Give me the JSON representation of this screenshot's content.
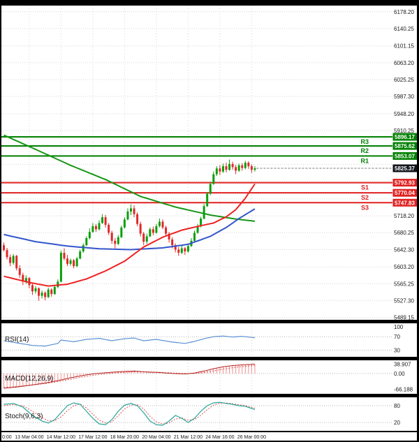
{
  "chart_data": {
    "type": "candlestick",
    "title": "",
    "grid": true,
    "ylim": [
      5480,
      6192
    ],
    "price_axis_ticks": [
      6178.2,
      6140.25,
      6101.15,
      6063.2,
      6025.25,
      5987.3,
      5948.2,
      5910.25,
      5872.3,
      5834.2,
      5796.25,
      5756.3,
      5718.2,
      5680.25,
      5642.3,
      5603.2,
      5565.25,
      5527.3,
      5489.15
    ],
    "time_axis": [
      {
        "text": "0:00",
        "i": -1
      },
      {
        "text": "13 Mar 04:00",
        "i": 8
      },
      {
        "text": "14 Mar 12:00",
        "i": 18
      },
      {
        "text": "17 Mar 12:00",
        "i": 28
      },
      {
        "text": "18 Mar 20:00",
        "i": 38
      },
      {
        "text": "20 Mar 04:00",
        "i": 48
      },
      {
        "text": "21 Mar 12:00",
        "i": 58
      },
      {
        "text": "24 Mar 16:00",
        "i": 68
      },
      {
        "text": "26 Mar 00:00",
        "i": 78
      }
    ],
    "levels": [
      {
        "label": "R3",
        "value": 5896.17,
        "text": "5896.17",
        "kind": "resistance"
      },
      {
        "label": "R2",
        "value": 5875.62,
        "text": "5875.62",
        "kind": "resistance"
      },
      {
        "label": "R1",
        "value": 5853.07,
        "text": "5853.07",
        "kind": "resistance"
      },
      {
        "label": "S1",
        "value": 5792.93,
        "text": "5792.93",
        "kind": "support"
      },
      {
        "label": "S2",
        "value": 5770.04,
        "text": "5770.04",
        "kind": "support"
      },
      {
        "label": "S3",
        "value": 5747.83,
        "text": "5747.83",
        "kind": "support"
      }
    ],
    "current_price": {
      "value": 5825.37,
      "text": "5825.37"
    },
    "series": {
      "candles": [
        [
          5652,
          5658,
          5638,
          5641
        ],
        [
          5641,
          5646,
          5620,
          5625
        ],
        [
          5625,
          5631,
          5605,
          5612
        ],
        [
          5612,
          5632,
          5608,
          5628
        ],
        [
          5628,
          5630,
          5595,
          5600
        ],
        [
          5600,
          5607,
          5578,
          5585
        ],
        [
          5585,
          5590,
          5562,
          5570
        ],
        [
          5570,
          5584,
          5565,
          5578
        ],
        [
          5578,
          5580,
          5555,
          5562
        ],
        [
          5562,
          5565,
          5540,
          5548
        ],
        [
          5548,
          5560,
          5543,
          5555
        ],
        [
          5555,
          5557,
          5527,
          5538
        ],
        [
          5538,
          5550,
          5532,
          5545
        ],
        [
          5545,
          5548,
          5528,
          5535
        ],
        [
          5535,
          5556,
          5533,
          5552
        ],
        [
          5552,
          5555,
          5536,
          5542
        ],
        [
          5542,
          5562,
          5540,
          5558
        ],
        [
          5558,
          5575,
          5555,
          5570
        ],
        [
          5570,
          5640,
          5568,
          5635
        ],
        [
          5635,
          5645,
          5618,
          5622
        ],
        [
          5622,
          5630,
          5605,
          5610
        ],
        [
          5610,
          5622,
          5606,
          5618
        ],
        [
          5618,
          5621,
          5600,
          5605
        ],
        [
          5605,
          5626,
          5602,
          5622
        ],
        [
          5622,
          5642,
          5620,
          5638
        ],
        [
          5638,
          5656,
          5635,
          5652
        ],
        [
          5652,
          5672,
          5650,
          5668
        ],
        [
          5668,
          5690,
          5665,
          5682
        ],
        [
          5682,
          5702,
          5680,
          5695
        ],
        [
          5695,
          5700,
          5682,
          5688
        ],
        [
          5688,
          5708,
          5685,
          5702
        ],
        [
          5702,
          5722,
          5700,
          5715
        ],
        [
          5715,
          5720,
          5692,
          5698
        ],
        [
          5698,
          5702,
          5675,
          5680
        ],
        [
          5680,
          5685,
          5655,
          5662
        ],
        [
          5662,
          5668,
          5645,
          5655
        ],
        [
          5655,
          5675,
          5652,
          5670
        ],
        [
          5670,
          5696,
          5668,
          5692
        ],
        [
          5692,
          5715,
          5690,
          5710
        ],
        [
          5710,
          5735,
          5708,
          5728
        ],
        [
          5728,
          5744,
          5720,
          5735
        ],
        [
          5735,
          5742,
          5715,
          5722
        ],
        [
          5722,
          5726,
          5695,
          5700
        ],
        [
          5700,
          5705,
          5672,
          5678
        ],
        [
          5678,
          5682,
          5652,
          5660
        ],
        [
          5660,
          5678,
          5655,
          5672
        ],
        [
          5672,
          5692,
          5670,
          5688
        ],
        [
          5688,
          5694,
          5674,
          5680
        ],
        [
          5680,
          5700,
          5678,
          5695
        ],
        [
          5695,
          5712,
          5692,
          5705
        ],
        [
          5705,
          5710,
          5688,
          5692
        ],
        [
          5692,
          5696,
          5672,
          5678
        ],
        [
          5678,
          5682,
          5658,
          5665
        ],
        [
          5665,
          5670,
          5645,
          5652
        ],
        [
          5652,
          5656,
          5636,
          5642
        ],
        [
          5642,
          5648,
          5628,
          5635
        ],
        [
          5635,
          5652,
          5632,
          5645
        ],
        [
          5645,
          5648,
          5630,
          5638
        ],
        [
          5638,
          5655,
          5635,
          5650
        ],
        [
          5650,
          5668,
          5648,
          5662
        ],
        [
          5662,
          5685,
          5660,
          5680
        ],
        [
          5680,
          5700,
          5678,
          5695
        ],
        [
          5695,
          5716,
          5692,
          5712
        ],
        [
          5712,
          5745,
          5710,
          5740
        ],
        [
          5740,
          5772,
          5738,
          5768
        ],
        [
          5768,
          5795,
          5765,
          5790
        ],
        [
          5790,
          5818,
          5788,
          5812
        ],
        [
          5812,
          5830,
          5808,
          5825
        ],
        [
          5825,
          5832,
          5810,
          5818
        ],
        [
          5818,
          5836,
          5815,
          5830
        ],
        [
          5830,
          5838,
          5816,
          5822
        ],
        [
          5822,
          5845,
          5820,
          5835
        ],
        [
          5835,
          5840,
          5822,
          5828
        ],
        [
          5828,
          5833,
          5812,
          5820
        ],
        [
          5820,
          5836,
          5817,
          5832
        ],
        [
          5832,
          5837,
          5820,
          5826
        ],
        [
          5826,
          5842,
          5823,
          5838
        ],
        [
          5838,
          5841,
          5824,
          5830
        ],
        [
          5830,
          5834,
          5815,
          5822
        ],
        [
          5822,
          5830,
          5818,
          5825.37
        ]
      ],
      "ma_keypoints": {
        "green": [
          [
            0,
            5900
          ],
          [
            10,
            5868
          ],
          [
            21,
            5832
          ],
          [
            32,
            5800
          ],
          [
            43,
            5762
          ],
          [
            54,
            5738
          ],
          [
            65,
            5720
          ],
          [
            72,
            5712
          ],
          [
            79,
            5706
          ]
        ],
        "blue": [
          [
            0,
            5676
          ],
          [
            10,
            5660
          ],
          [
            20,
            5650
          ],
          [
            30,
            5644
          ],
          [
            40,
            5642
          ],
          [
            50,
            5646
          ],
          [
            58,
            5654
          ],
          [
            65,
            5672
          ],
          [
            70,
            5692
          ],
          [
            74,
            5712
          ],
          [
            79,
            5734
          ]
        ],
        "red": [
          [
            0,
            5582
          ],
          [
            8,
            5568
          ],
          [
            14,
            5560
          ],
          [
            20,
            5564
          ],
          [
            26,
            5576
          ],
          [
            32,
            5594
          ],
          [
            38,
            5616
          ],
          [
            44,
            5648
          ],
          [
            50,
            5670
          ],
          [
            56,
            5686
          ],
          [
            62,
            5696
          ],
          [
            66,
            5702
          ],
          [
            70,
            5716
          ],
          [
            73,
            5732
          ],
          [
            76,
            5758
          ],
          [
            79,
            5790
          ]
        ]
      },
      "rsi_keypoints": [
        [
          0,
          58
        ],
        [
          5,
          50
        ],
        [
          9,
          44
        ],
        [
          13,
          42
        ],
        [
          17,
          50
        ],
        [
          18,
          60
        ],
        [
          22,
          55
        ],
        [
          26,
          62
        ],
        [
          30,
          65
        ],
        [
          34,
          58
        ],
        [
          38,
          64
        ],
        [
          41,
          66
        ],
        [
          44,
          58
        ],
        [
          48,
          62
        ],
        [
          53,
          54
        ],
        [
          57,
          50
        ],
        [
          60,
          56
        ],
        [
          63,
          64
        ],
        [
          66,
          70
        ],
        [
          69,
          72
        ],
        [
          72,
          69
        ],
        [
          75,
          71
        ],
        [
          79,
          67
        ]
      ],
      "macd_keypoints": [
        [
          0,
          -62
        ],
        [
          5,
          -55
        ],
        [
          9,
          -48
        ],
        [
          13,
          -40
        ],
        [
          17,
          -30
        ],
        [
          21,
          -18
        ],
        [
          25,
          -8
        ],
        [
          29,
          0
        ],
        [
          33,
          4
        ],
        [
          37,
          8
        ],
        [
          41,
          10
        ],
        [
          45,
          6
        ],
        [
          49,
          4
        ],
        [
          53,
          0
        ],
        [
          57,
          -2
        ],
        [
          60,
          2
        ],
        [
          63,
          10
        ],
        [
          66,
          20
        ],
        [
          69,
          28
        ],
        [
          72,
          33
        ],
        [
          75,
          36
        ],
        [
          79,
          38.9
        ]
      ],
      "macd_signal_keypoints": [
        [
          0,
          -58
        ],
        [
          5,
          -53
        ],
        [
          9,
          -48
        ],
        [
          13,
          -42
        ],
        [
          17,
          -34
        ],
        [
          21,
          -24
        ],
        [
          25,
          -14
        ],
        [
          29,
          -6
        ],
        [
          33,
          0
        ],
        [
          37,
          4
        ],
        [
          41,
          7
        ],
        [
          45,
          7
        ],
        [
          49,
          5
        ],
        [
          53,
          2
        ],
        [
          57,
          0
        ],
        [
          60,
          0
        ],
        [
          63,
          4
        ],
        [
          66,
          11
        ],
        [
          69,
          18
        ],
        [
          72,
          24
        ],
        [
          75,
          29
        ],
        [
          79,
          34
        ]
      ],
      "stoch_k_keypoints": [
        [
          0,
          85
        ],
        [
          3,
          88
        ],
        [
          6,
          75
        ],
        [
          9,
          45
        ],
        [
          12,
          25
        ],
        [
          14,
          18
        ],
        [
          16,
          30
        ],
        [
          18,
          55
        ],
        [
          20,
          80
        ],
        [
          22,
          90
        ],
        [
          24,
          85
        ],
        [
          26,
          60
        ],
        [
          28,
          35
        ],
        [
          30,
          15
        ],
        [
          32,
          12
        ],
        [
          34,
          30
        ],
        [
          36,
          60
        ],
        [
          38,
          82
        ],
        [
          40,
          88
        ],
        [
          42,
          80
        ],
        [
          44,
          55
        ],
        [
          46,
          25
        ],
        [
          48,
          12
        ],
        [
          50,
          10
        ],
        [
          52,
          25
        ],
        [
          54,
          45
        ],
        [
          56,
          35
        ],
        [
          58,
          20
        ],
        [
          60,
          35
        ],
        [
          62,
          60
        ],
        [
          64,
          80
        ],
        [
          66,
          90
        ],
        [
          68,
          92
        ],
        [
          70,
          88
        ],
        [
          72,
          85
        ],
        [
          74,
          80
        ],
        [
          76,
          78
        ],
        [
          78,
          70
        ],
        [
          79,
          66
        ]
      ],
      "stoch_d_keypoints": [
        [
          0,
          80
        ],
        [
          3,
          84
        ],
        [
          6,
          80
        ],
        [
          9,
          60
        ],
        [
          12,
          38
        ],
        [
          14,
          26
        ],
        [
          16,
          26
        ],
        [
          18,
          40
        ],
        [
          20,
          62
        ],
        [
          22,
          80
        ],
        [
          24,
          86
        ],
        [
          26,
          72
        ],
        [
          28,
          50
        ],
        [
          30,
          28
        ],
        [
          32,
          18
        ],
        [
          34,
          22
        ],
        [
          36,
          44
        ],
        [
          38,
          68
        ],
        [
          40,
          82
        ],
        [
          42,
          84
        ],
        [
          44,
          68
        ],
        [
          46,
          42
        ],
        [
          48,
          22
        ],
        [
          50,
          14
        ],
        [
          52,
          18
        ],
        [
          54,
          32
        ],
        [
          56,
          36
        ],
        [
          58,
          28
        ],
        [
          60,
          30
        ],
        [
          62,
          46
        ],
        [
          64,
          66
        ],
        [
          66,
          82
        ],
        [
          68,
          89
        ],
        [
          70,
          90
        ],
        [
          72,
          87
        ],
        [
          74,
          83
        ],
        [
          76,
          80
        ],
        [
          78,
          74
        ],
        [
          79,
          71
        ]
      ]
    },
    "panels": {
      "rsi": {
        "label": "RSI(14)",
        "ticks": [
          {
            "v": 100,
            "text": "100"
          },
          {
            "v": 70,
            "text": "70"
          },
          {
            "v": 30,
            "text": "30"
          }
        ],
        "level_lines": [
          70,
          30
        ],
        "ylim": [
          10,
          110
        ]
      },
      "macd": {
        "label": "MACD(12,26,9)",
        "ticks": [
          {
            "v": 38.907,
            "text": "38.907"
          },
          {
            "v": 0,
            "text": "0.00"
          },
          {
            "v": -66.188,
            "text": "-66.188"
          }
        ],
        "level_lines": [
          0
        ],
        "ylim": [
          -85,
          55
        ]
      },
      "stoch": {
        "label": "Stoch(9,6,3)",
        "ticks": [
          {
            "v": 80,
            "text": "80"
          },
          {
            "v": 20,
            "text": "20"
          }
        ],
        "level_lines": [
          80,
          20
        ],
        "ylim": [
          -10,
          110
        ]
      }
    },
    "colors": {
      "bull": "#0b9e0b",
      "bear": "#e02828",
      "ma_green": "#169616",
      "ma_blue": "#3355cc",
      "ma_red": "#ee2222",
      "resistance": "#008000",
      "support": "#e02020",
      "current_badge": "#10131c",
      "grid": "#d6d6d6",
      "level_dotted": "#b5b5b5",
      "rsi_line": "#5b8fd4",
      "macd_line": "#b22222",
      "macd_signal": "#e05050",
      "macd_hist": "#f09090",
      "stoch_k": "#26a69a",
      "stoch_d": "#e05050",
      "axis_text": "#1a1a1a",
      "frame": "#000000"
    }
  }
}
